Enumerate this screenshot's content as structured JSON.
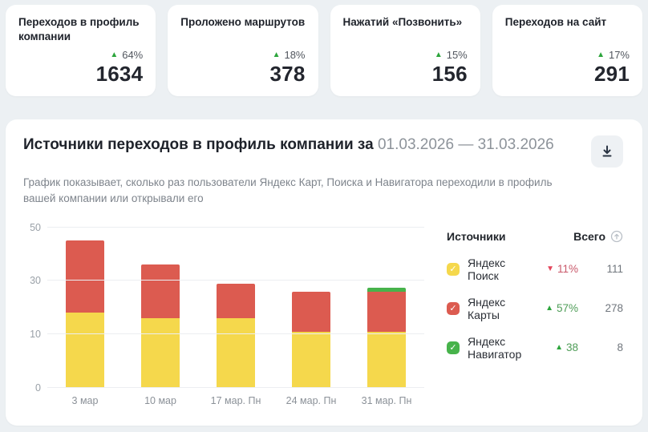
{
  "stat_cards": [
    {
      "label": "Переходов в профиль компании",
      "trend": "up",
      "delta": "64%",
      "value": "1634"
    },
    {
      "label": "Проложено маршрутов",
      "trend": "up",
      "delta": "18%",
      "value": "378"
    },
    {
      "label": "Нажатий «Позвонить»",
      "trend": "up",
      "delta": "15%",
      "value": "156"
    },
    {
      "label": "Переходов на сайт",
      "trend": "up",
      "delta": "17%",
      "value": "291"
    }
  ],
  "main": {
    "title": "Источники переходов в профиль компании за",
    "date_range": "01.03.2026 — 31.03.2026",
    "subtitle": "График показывает, сколько раз пользователи Яндекс Карт, Поиска и Навигатора переходили в профиль вашей компании или открывали его",
    "download_icon": "download-icon"
  },
  "legend": {
    "header_sources": "Источники",
    "header_total": "Всего",
    "sort_icon": "circled-arrow-up-icon",
    "items": [
      {
        "label": "Яндекс Поиск",
        "color": "#f5d84c",
        "checked": true,
        "trend": "down",
        "delta": "11%",
        "total": "111"
      },
      {
        "label": "Яндекс Карты",
        "color": "#dc5b50",
        "checked": true,
        "trend": "up",
        "delta": "57%",
        "total": "278"
      },
      {
        "label": "Яндекс Навигатор",
        "color": "#47b34b",
        "checked": true,
        "trend": "up",
        "delta": "38",
        "total": "8"
      }
    ]
  },
  "chart_data": {
    "type": "bar",
    "stacked": true,
    "title": "Источники переходов в профиль компании",
    "categories": [
      "3 мар",
      "10 мар",
      "17 мар. Пн",
      "24 мар. Пн",
      "31 мар. Пн"
    ],
    "series": [
      {
        "name": "Яндекс Поиск",
        "color": "#f5d84c",
        "values": [
          18,
          16,
          16,
          11,
          11
        ]
      },
      {
        "name": "Яндекс Карты",
        "color": "#dc5b50",
        "values": [
          27,
          20,
          13,
          15,
          15
        ]
      },
      {
        "name": "Яндекс Навигатор",
        "color": "#47b34b",
        "values": [
          0,
          0,
          0,
          0,
          1.5
        ]
      }
    ],
    "yticks": [
      0,
      10,
      30,
      50
    ],
    "ylim": [
      0,
      50
    ],
    "grid": true,
    "legend_position": "right"
  },
  "colors": {
    "trend_up": "#2ca53c",
    "trend_down": "#e4455c",
    "bar_yellow": "#f5d84c",
    "bar_red": "#dc5b50",
    "bar_green": "#47b34b",
    "page_bg": "#ecf0f3",
    "card_bg": "#ffffff"
  }
}
